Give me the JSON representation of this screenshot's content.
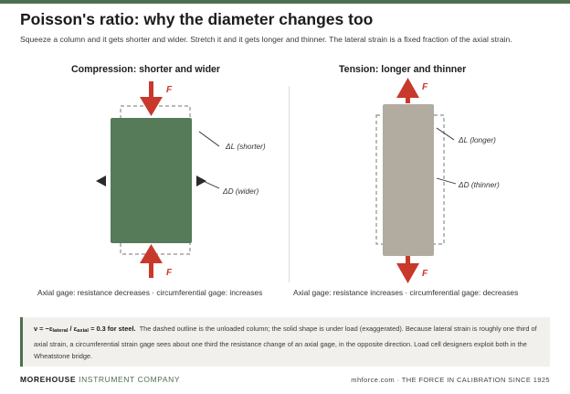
{
  "header": {
    "title": "Poisson's ratio: why the diameter changes too",
    "subtitle": "Squeeze a column and it gets shorter and wider. Stretch it and it gets longer and thinner. The lateral strain is a fixed fraction of the axial strain."
  },
  "compression": {
    "title": "Compression: shorter and wider",
    "force_top": "F",
    "force_bottom": "F",
    "label_length": "ΔL (shorter)",
    "label_diameter": "ΔD (wider)",
    "caption": "Axial gage: resistance decreases · circumferential gage: increases",
    "fill_color": "#557b58"
  },
  "tension": {
    "title": "Tension: longer and thinner",
    "force_top": "F",
    "force_bottom": "F",
    "label_length": "ΔL (longer)",
    "label_diameter": "ΔD (thinner)",
    "caption": "Axial gage: resistance increases · circumferential gage: decreases",
    "fill_color": "#b1aba0"
  },
  "note": {
    "formula_prefix": "ν = −ε",
    "formula_sub1": "lateral",
    "formula_mid": " / ε",
    "formula_sub2": "axial",
    "formula_suffix": " = 0.3 for steel.",
    "body": "The dashed outline is the unloaded column; the solid shape is under load (exaggerated). Because lateral strain is roughly one third of axial strain, a circumferential strain gage sees about one third the resistance change of an axial gage, in the opposite direction. Load cell designers exploit both in the Wheatstone bridge."
  },
  "footer": {
    "brand_bold": "MOREHOUSE",
    "brand_rest": " INSTRUMENT COMPANY",
    "tagline": "mhforce.com · THE FORCE IN CALIBRATION SINCE 1925"
  },
  "colors": {
    "accent_green": "#4e6f4f",
    "force_red": "#c8392b",
    "gray_column": "#b1aba0"
  }
}
